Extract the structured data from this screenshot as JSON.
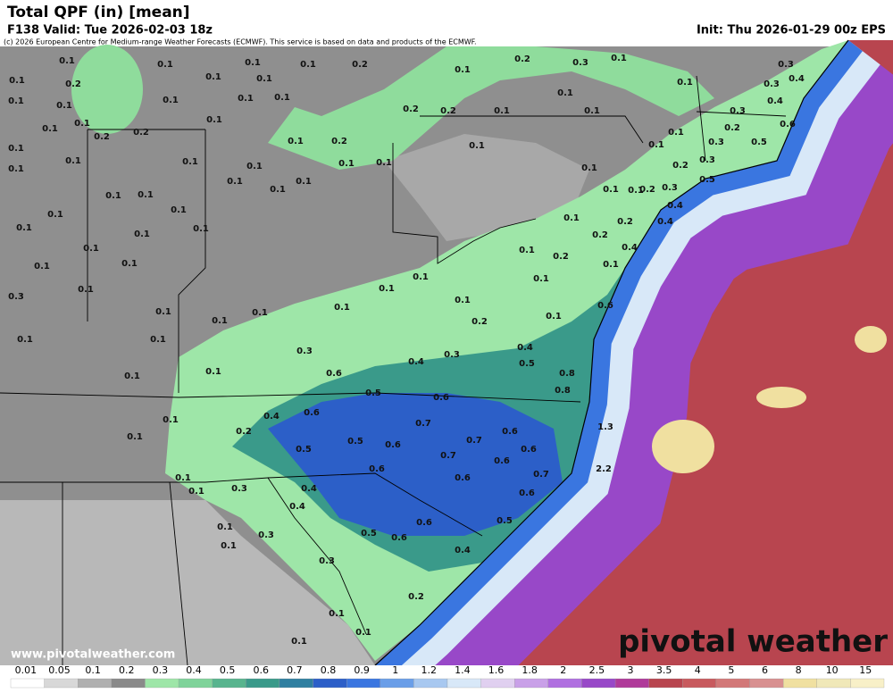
{
  "header": {
    "title": "Total QPF (in) [mean]",
    "valid": "F138 Valid: Tue 2026-02-03 18z",
    "init": "Init: Thu 2026-01-29 00z EPS",
    "credit": "(c) 2026 European Centre for Medium-range Weather Forecasts (ECMWF). This service is based on data and products of the ECMWF."
  },
  "map": {
    "labels": [
      0.1,
      0.1,
      0.1,
      0.1,
      0.2,
      0.1,
      0.2,
      0.3,
      0.1,
      0.1,
      0.3,
      0.4,
      0.1,
      0.2,
      0.1,
      0.1,
      0.1,
      0.1,
      0.1,
      0.1,
      0.1,
      0.2,
      0.2,
      0.1,
      0.1,
      0.1,
      0.3,
      0.4,
      0.1,
      0.1,
      0.2,
      0.2,
      0.1,
      0.1,
      0.2,
      0.1,
      0.1,
      0.3,
      0.2,
      0.5,
      0.6,
      0.3,
      0.1,
      0.1,
      0.1,
      0.1,
      0.1,
      0.1,
      0.1,
      0.1,
      0.1,
      0.1,
      0.1,
      0.1,
      0.3,
      0.2,
      0.5,
      0.1,
      0.1,
      0.1,
      0.1,
      0.2,
      0.3,
      0.1,
      0.1,
      0.4,
      0.2,
      0.4,
      0.1,
      0.1,
      0.1,
      0.1,
      0.4,
      0.2,
      0.1,
      0.1,
      0.2,
      0.1,
      0.1,
      0.1,
      0.1,
      0.3,
      0.1,
      0.1,
      0.1,
      0.1,
      0.6,
      0.1,
      0.1,
      0.1,
      0.1,
      0.2,
      0.1,
      0.1,
      0.1,
      0.3,
      0.3,
      0.4,
      0.4,
      0.1,
      0.6,
      0.5,
      0.8,
      0.1,
      0.5,
      0.6,
      0.8,
      0.1,
      0.4,
      0.6,
      0.7,
      0.6,
      0.1,
      0.2,
      0.5,
      0.6,
      0.7,
      0.6,
      0.5,
      0.7,
      0.6,
      0.6,
      0.7,
      0.6,
      1.3,
      2.2,
      0.1,
      0.1,
      0.3,
      0.4,
      0.6,
      0.4,
      0.1,
      0.6,
      0.5,
      0.3,
      0.5,
      0.6,
      0.1,
      0.4,
      0.3,
      0.2,
      0.1,
      0.1,
      0.1
    ]
  },
  "legend": {
    "ticks": [
      0.01,
      0.05,
      0.1,
      0.2,
      0.3,
      0.4,
      0.5,
      0.6,
      0.7,
      0.8,
      0.9,
      1,
      1.2,
      1.4,
      1.6,
      1.8,
      2,
      2.5,
      3,
      3.5,
      4,
      5,
      6,
      8,
      10,
      15
    ],
    "colors": [
      "#ffffff",
      "#d8d8d8",
      "#b0b0b0",
      "#8a8a8a",
      "#9ee6a8",
      "#7fd39a",
      "#58b48e",
      "#3a9a8a",
      "#2f7fa0",
      "#2c5fc8",
      "#3a76e0",
      "#6a9ee8",
      "#a8c8f0",
      "#d8e8f8",
      "#e0d0f0",
      "#c9a0e8",
      "#b070e0",
      "#9848c8",
      "#b03a9a",
      "#b8454f",
      "#c85a5e",
      "#d27878",
      "#d89090",
      "#f0e0a0",
      "#f0e8b8",
      "#f8f0c8"
    ]
  },
  "footer": {
    "website": "www.pivotalweather.com",
    "logo": "pivotal weather"
  }
}
